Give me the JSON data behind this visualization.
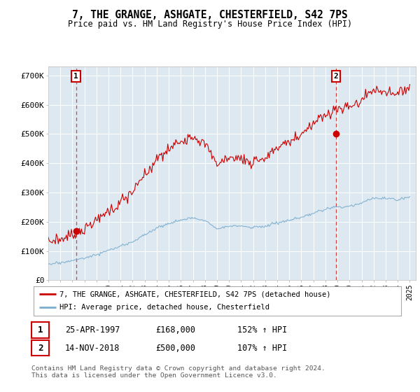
{
  "title": "7, THE GRANGE, ASHGATE, CHESTERFIELD, S42 7PS",
  "subtitle": "Price paid vs. HM Land Registry's House Price Index (HPI)",
  "plot_bg_color": "#dde8f0",
  "ytick_labels": [
    "£0",
    "£100K",
    "£200K",
    "£300K",
    "£400K",
    "£500K",
    "£600K",
    "£700K"
  ],
  "yticks": [
    0,
    100000,
    200000,
    300000,
    400000,
    500000,
    600000,
    700000
  ],
  "xlim_start": 1995.0,
  "xlim_end": 2025.5,
  "ylim_min": 0,
  "ylim_max": 730000,
  "legend_line1": "7, THE GRANGE, ASHGATE, CHESTERFIELD, S42 7PS (detached house)",
  "legend_line2": "HPI: Average price, detached house, Chesterfield",
  "transaction1_date": "25-APR-1997",
  "transaction1_price": "£168,000",
  "transaction1_hpi": "152% ↑ HPI",
  "transaction1_x": 1997.3,
  "transaction1_y": 168000,
  "transaction2_date": "14-NOV-2018",
  "transaction2_price": "£500,000",
  "transaction2_hpi": "107% ↑ HPI",
  "transaction2_x": 2018.87,
  "transaction2_y": 500000,
  "red_color": "#cc0000",
  "blue_color": "#7aadcf",
  "footer_text": "Contains HM Land Registry data © Crown copyright and database right 2024.\nThis data is licensed under the Open Government Licence v3.0."
}
